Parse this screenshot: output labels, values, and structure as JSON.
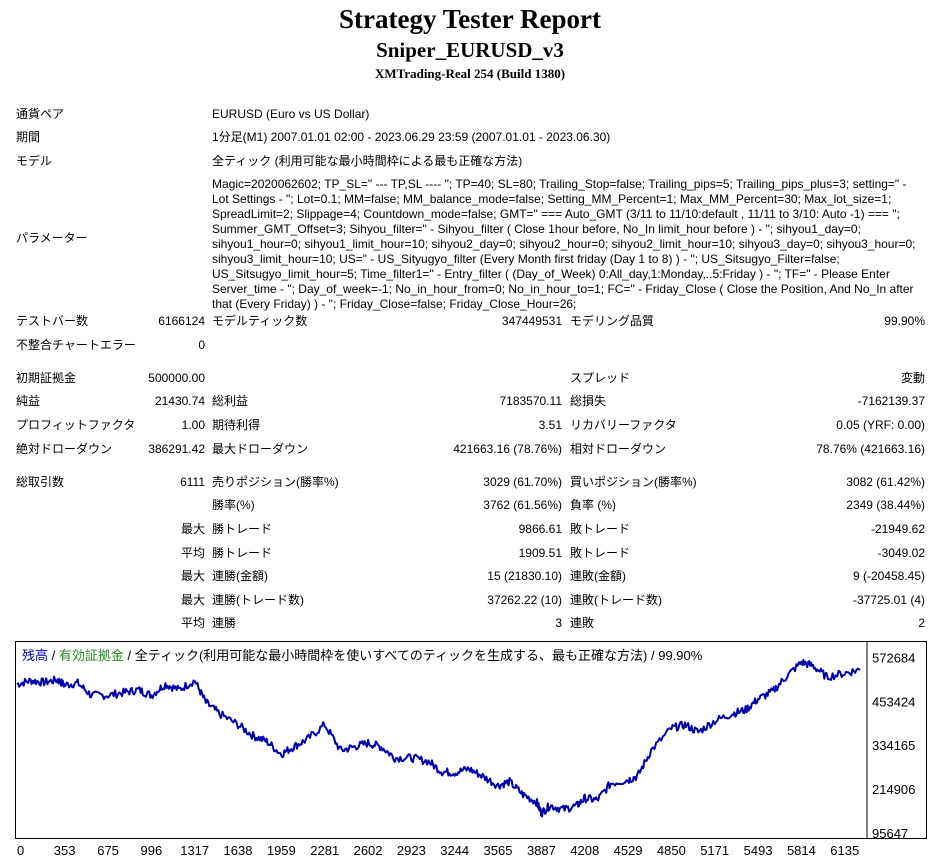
{
  "header": {
    "title": "Strategy Tester Report",
    "ea_name": "Sniper_EURUSD_v3",
    "server": "XMTrading-Real 254 (Build 1380)"
  },
  "info": {
    "pair_label": "通貨ペア",
    "pair_value": "EURUSD (Euro vs US Dollar)",
    "period_label": "期間",
    "period_value": "1分足(M1) 2007.01.01 02:00 - 2023.06.29 23:59 (2007.01.01 - 2023.06.30)",
    "model_label": "モデル",
    "model_value": "全ティック (利用可能な最小時間枠による最も正確な方法)",
    "params_label": "パラメーター",
    "params_value": "Magic=2020062602; TP_SL=\" --- TP,SL ---- \"; TP=40; SL=80; Trailing_Stop=false; Trailing_pips=5; Trailing_pips_plus=3; setting=\" - Lot Settings - \"; Lot=0.1; MM=false; MM_balance_mode=false; Setting_MM_Percent=1; Max_MM_Percent=30; Max_lot_size=1; SpreadLimit=2; Slippage=4; Countdown_mode=false; GMT=\" === Auto_GMT (3/11 to 11/10:default , 11/11 to 3/10: Auto -1) === \"; Summer_GMT_Offset=3; Sihyou_filter=\" - Sihyou_filter ( Close 1hour before, No_In limit_hour before ) - \"; sihyou1_day=0; sihyou1_hour=0; sihyou1_limit_hour=10; sihyou2_day=0; sihyou2_hour=0; sihyou2_limit_hour=10; sihyou3_day=0; sihyou3_hour=0; sihyou3_limit_hour=10; US=\" - US_Sityugyo_filter (Every Month first friday (Day 1 to 8) ) - \"; US_Sitsugyo_Filter=false; US_Sitsugyo_limit_hour=5; Time_filter1=\" - Entry_filter ( (Day_of_Week) 0:All_day,1:Monday,..5:Friday ) - \"; TF=\" - Please Enter Server_time - \"; Day_of_week=-1; No_in_hour_from=0; No_in_hour_to=1; FC=\" - Friday_Close ( Close the Position, And No_In after that (Every Friday) ) - \"; Friday_Close=false; Friday_Close_Hour=26;"
  },
  "stats": {
    "bars_label": "テストバー数",
    "bars_value": "6166124",
    "ticks_label": "モデルティック数",
    "ticks_value": "347449531",
    "quality_label": "モデリング品質",
    "quality_value": "99.90%",
    "mismatch_label": "不整合チャートエラー",
    "mismatch_value": "0",
    "deposit_label": "初期証拠金",
    "deposit_value": "500000.00",
    "spread_label": "スプレッド",
    "spread_value": "変動",
    "net_label": "純益",
    "net_value": "21430.74",
    "gross_profit_label": "総利益",
    "gross_profit_value": "7183570.11",
    "gross_loss_label": "総損失",
    "gross_loss_value": "-7162139.37",
    "pf_label": "プロフィットファクタ",
    "pf_value": "1.00",
    "expected_label": "期待利得",
    "expected_value": "3.51",
    "recovery_label": "リカバリーファクタ",
    "recovery_value": "0.05 (YRF: 0.00)",
    "abs_dd_label": "絶対ドローダウン",
    "abs_dd_value": "386291.42",
    "max_dd_label": "最大ドローダウン",
    "max_dd_value": "421663.16 (78.76%)",
    "rel_dd_label": "相対ドローダウン",
    "rel_dd_value": "78.76% (421663.16)",
    "trades_label": "総取引数",
    "trades_value": "6111",
    "short_label": "売りポジション(勝率%)",
    "short_value": "3029 (61.70%)",
    "long_label": "買いポジション(勝率%)",
    "long_value": "3082 (61.42%)",
    "winrate_label": "勝率(%)",
    "winrate_value": "3762 (61.56%)",
    "lossrate_label": "負率 (%)",
    "lossrate_value": "2349 (38.44%)",
    "max1": "最大",
    "max_win_label": "勝トレード",
    "max_win_value": "9866.61",
    "max_loss_label": "敗トレード",
    "max_loss_value": "-21949.62",
    "avg1": "平均",
    "avg_win_label": "勝トレード",
    "avg_win_value": "1909.51",
    "avg_loss_label": "敗トレード",
    "avg_loss_value": "-3049.02",
    "max2": "最大",
    "consec_win_amt_label": "連勝(金額)",
    "consec_win_amt_value": "15 (21830.10)",
    "consec_loss_amt_label": "連敗(金額)",
    "consec_loss_amt_value": "9 (-20458.45)",
    "max3": "最大",
    "consec_win_cnt_label": "連勝(トレード数)",
    "consec_win_cnt_value": "37262.22 (10)",
    "consec_loss_cnt_label": "連敗(トレード数)",
    "consec_loss_cnt_value": "-37725.01 (4)",
    "avg2": "平均",
    "avg_consec_win_label": "連勝",
    "avg_consec_win_value": "3",
    "avg_consec_loss_label": "連敗",
    "avg_consec_loss_value": "2"
  },
  "chart_data": {
    "type": "line",
    "legend": {
      "balance": "残高",
      "sep1": " / ",
      "equity": "有効証拠金",
      "sep2": " / ",
      "model": "全ティック(利用可能な最小時間枠を使いすべてのティックを生成する、最も正確な方法)",
      "sep3": " / ",
      "quality": "99.90%"
    },
    "x_ticks": [
      "0",
      "353",
      "675",
      "996",
      "1317",
      "1638",
      "1959",
      "2281",
      "2602",
      "2923",
      "3244",
      "3565",
      "3887",
      "4208",
      "4529",
      "4850",
      "5171",
      "5493",
      "5814",
      "6135"
    ],
    "y_ticks": [
      "572684",
      "453424",
      "334165",
      "214906",
      "95647"
    ],
    "ylim": [
      95647,
      612000
    ],
    "xlim": [
      0,
      6300
    ],
    "series": [
      {
        "color": "#0000aa",
        "x": [
          0,
          100,
          200,
          300,
          353,
          450,
          550,
          675,
          800,
          900,
          996,
          1100,
          1200,
          1317,
          1400,
          1500,
          1638,
          1750,
          1850,
          1959,
          2050,
          2150,
          2281,
          2400,
          2500,
          2602,
          2700,
          2800,
          2923,
          3050,
          3150,
          3244,
          3350,
          3450,
          3565,
          3650,
          3750,
          3850,
          3887,
          3950,
          4050,
          4150,
          4208,
          4300,
          4400,
          4529,
          4600,
          4700,
          4850,
          4950,
          5050,
          5171,
          5300,
          5400,
          5493,
          5600,
          5700,
          5814,
          5900,
          6000,
          6135,
          6250
        ],
        "y": [
          500000,
          510000,
          505000,
          512000,
          498000,
          503000,
          470000,
          470000,
          478000,
          485000,
          470000,
          500000,
          485000,
          510000,
          450000,
          420000,
          390000,
          360000,
          345000,
          310000,
          330000,
          350000,
          390000,
          320000,
          330000,
          340000,
          330000,
          300000,
          300000,
          290000,
          262000,
          260000,
          270000,
          250000,
          225000,
          235000,
          200000,
          180000,
          150000,
          170000,
          160000,
          170000,
          190000,
          185000,
          230000,
          240000,
          250000,
          320000,
          380000,
          390000,
          370000,
          400000,
          420000,
          430000,
          460000,
          480000,
          520000,
          560000,
          550000,
          520000,
          530000,
          540000
        ]
      }
    ]
  }
}
